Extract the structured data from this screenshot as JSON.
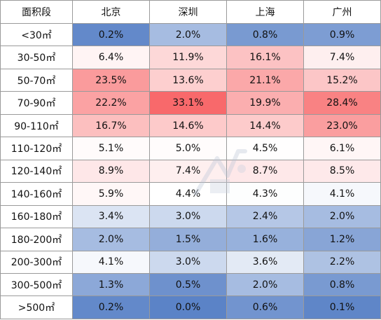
{
  "chart_data": {
    "type": "heatmap",
    "corner_label": "面积段",
    "columns": [
      "北京",
      "深圳",
      "上海",
      "广州"
    ],
    "rows": [
      "<30㎡",
      "30-50㎡",
      "50-70㎡",
      "70-90㎡",
      "90-110㎡",
      "110-120㎡",
      "120-140㎡",
      "140-160㎡",
      "160-180㎡",
      "180-200㎡",
      "200-300㎡",
      "300-500㎡",
      ">500㎡"
    ],
    "values": [
      [
        "0.2%",
        "2.0%",
        "0.8%",
        "0.9%"
      ],
      [
        "6.4%",
        "11.9%",
        "16.1%",
        "7.4%"
      ],
      [
        "23.5%",
        "13.6%",
        "21.1%",
        "15.2%"
      ],
      [
        "22.2%",
        "33.1%",
        "19.9%",
        "28.4%"
      ],
      [
        "16.7%",
        "14.6%",
        "14.4%",
        "23.0%"
      ],
      [
        "5.1%",
        "5.0%",
        "4.5%",
        "6.1%"
      ],
      [
        "8.9%",
        "7.4%",
        "8.7%",
        "8.5%"
      ],
      [
        "5.9%",
        "4.4%",
        "4.3%",
        "4.1%"
      ],
      [
        "3.4%",
        "3.0%",
        "2.4%",
        "2.0%"
      ],
      [
        "2.0%",
        "1.5%",
        "1.6%",
        "1.2%"
      ],
      [
        "4.1%",
        "3.0%",
        "3.6%",
        "2.2%"
      ],
      [
        "1.3%",
        "0.5%",
        "2.0%",
        "0.8%"
      ],
      [
        "0.2%",
        "0.0%",
        "0.6%",
        "0.1%"
      ]
    ],
    "colors": {
      "low": "#5b83c7",
      "mid": "#ffffff",
      "high": "#f8696b"
    }
  }
}
